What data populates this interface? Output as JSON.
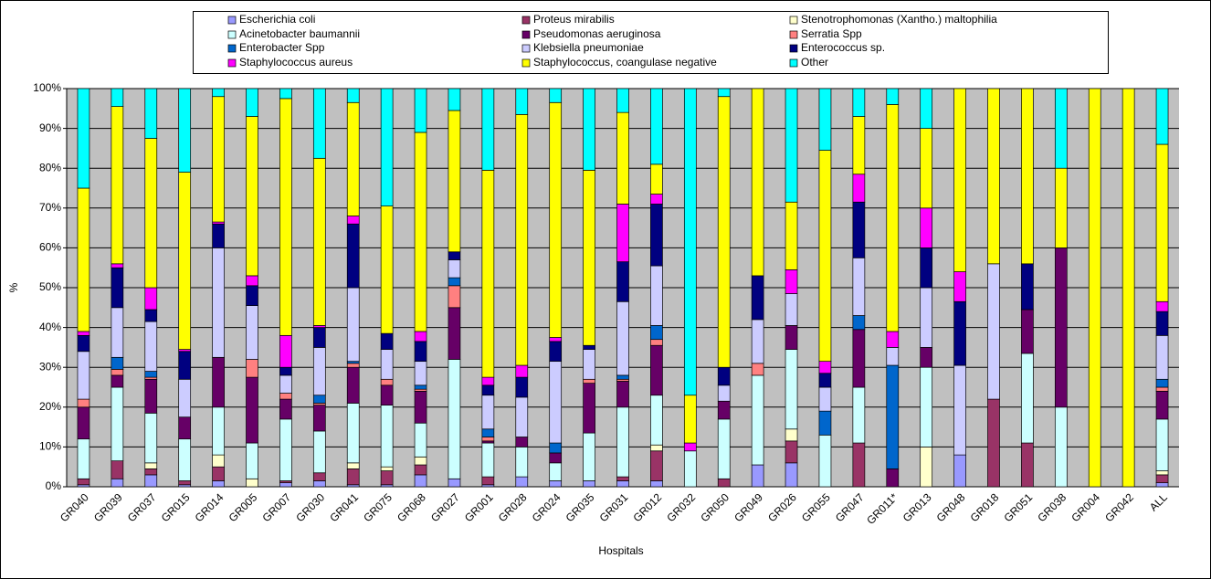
{
  "chart_data": {
    "type": "stacked_bar_100",
    "y_label": "%",
    "x_label": "Hospitals",
    "categories": [
      "GR040",
      "GR039",
      "GR037",
      "GR015",
      "GR014",
      "GR005",
      "GR007",
      "GR030",
      "GR041",
      "GR075",
      "GR068",
      "GR027",
      "GR001",
      "GR028",
      "GR024",
      "GR035",
      "GR031",
      "GR012",
      "GR032",
      "GR050",
      "GR049",
      "GR026",
      "GR055",
      "GR047",
      "GR011*",
      "GR013",
      "GR048",
      "GR018",
      "GR051",
      "GR038",
      "GR004",
      "GR042",
      "ALL"
    ],
    "ylim": [
      0,
      100
    ],
    "yticks": [
      {
        "value": 0,
        "label": "0%"
      },
      {
        "value": 10,
        "label": "10%"
      },
      {
        "value": 20,
        "label": "20%"
      },
      {
        "value": 30,
        "label": "30%"
      },
      {
        "value": 40,
        "label": "40%"
      },
      {
        "value": 50,
        "label": "50%"
      },
      {
        "value": 60,
        "label": "60%"
      },
      {
        "value": 70,
        "label": "70%"
      },
      {
        "value": 80,
        "label": "80%"
      },
      {
        "value": 90,
        "label": "90%"
      },
      {
        "value": 100,
        "label": "100%"
      }
    ],
    "grid": true,
    "legend": "top",
    "series": [
      {
        "name": "Escherichia coli",
        "color": "#9999ff",
        "values": [
          0.5,
          2,
          3,
          0.5,
          1.5,
          0,
          1,
          1.5,
          0.5,
          0.5,
          3,
          2,
          0.5,
          2.5,
          1.5,
          1.5,
          1.5,
          1.5,
          0,
          0,
          5.5,
          6,
          0,
          0,
          0,
          0,
          8,
          0,
          0,
          0,
          0,
          0,
          1
        ]
      },
      {
        "name": "Proteus mirabilis",
        "color": "#993366",
        "values": [
          1.5,
          4.5,
          1.5,
          1,
          3.5,
          0,
          0.5,
          2,
          4,
          3.5,
          2.5,
          0,
          2,
          0,
          0,
          0,
          1,
          7.5,
          0,
          2,
          0,
          5.5,
          0,
          11,
          0,
          0,
          0,
          22,
          11,
          0,
          0,
          0,
          2
        ]
      },
      {
        "name": "Stenotrophomonas (Xantho.) maltophilia",
        "color": "#ffffcc",
        "values": [
          0,
          0,
          1.5,
          0,
          3,
          2,
          0,
          0,
          1.5,
          1,
          2,
          0,
          0,
          0,
          0,
          0,
          0,
          1.5,
          0,
          0,
          0,
          3,
          0,
          0,
          0,
          10,
          0,
          0,
          0,
          0,
          0,
          0,
          1
        ]
      },
      {
        "name": "Acinetobacter baumannii",
        "color": "#ccffff",
        "values": [
          10,
          18.5,
          12.5,
          10.5,
          12,
          9,
          15.5,
          10.5,
          15,
          15.5,
          8.5,
          30,
          8.5,
          7.5,
          4.5,
          12,
          17.5,
          12.5,
          9,
          15,
          22.5,
          20,
          13,
          14,
          0,
          20,
          0,
          0,
          22.5,
          20,
          0,
          0,
          13
        ]
      },
      {
        "name": "Pseudomonas aeruginosa",
        "color": "#660066",
        "values": [
          8,
          3,
          8.5,
          5.5,
          12.5,
          16.5,
          5,
          6.5,
          9,
          5,
          8,
          13,
          0.5,
          2.5,
          2.5,
          12.5,
          6.5,
          12.5,
          0,
          4.5,
          0,
          6,
          0,
          14.5,
          4.5,
          5,
          0,
          0,
          11,
          40,
          0,
          0,
          7
        ]
      },
      {
        "name": "Serratia Spp",
        "color": "#ff8080",
        "values": [
          2,
          1.5,
          0.5,
          0,
          0,
          4.5,
          1.5,
          0.5,
          1,
          1.5,
          0.5,
          5.5,
          1,
          0,
          0,
          1,
          0.5,
          1.5,
          0,
          0,
          3,
          0,
          0,
          0,
          0,
          0,
          0,
          0,
          0,
          0,
          0,
          0,
          1
        ]
      },
      {
        "name": "Enterobacter Spp",
        "color": "#0066cc",
        "values": [
          0,
          3,
          1.5,
          0,
          0,
          0,
          0,
          2,
          0.5,
          0,
          1,
          2,
          2,
          0,
          2.5,
          0,
          1,
          3.5,
          0,
          0,
          0,
          0,
          6,
          3.5,
          26,
          0,
          0,
          0,
          0,
          0,
          0,
          0,
          2
        ]
      },
      {
        "name": "Klebsiella pneumoniae",
        "color": "#ccccff",
        "values": [
          12,
          12.5,
          12.5,
          9.5,
          27.5,
          13.5,
          4.5,
          12,
          18.5,
          7.5,
          6,
          4.5,
          8.5,
          10,
          20.5,
          7.5,
          18.5,
          15,
          0,
          4,
          11,
          8,
          6,
          14.5,
          4.5,
          15,
          22.5,
          34,
          0,
          0,
          0,
          0,
          11
        ]
      },
      {
        "name": "Enterococcus sp.",
        "color": "#000080",
        "values": [
          4,
          10,
          3,
          7,
          6,
          5,
          2,
          5,
          16,
          4,
          5,
          2,
          2.5,
          5,
          5,
          1,
          10,
          15.5,
          0,
          4.5,
          11,
          0,
          3.5,
          14,
          0,
          10,
          16,
          0,
          11.5,
          0,
          0,
          0,
          6
        ]
      },
      {
        "name": "Staphylococcus aureus",
        "color": "#ff00ff",
        "values": [
          1,
          1,
          5.5,
          0.5,
          0.5,
          2.5,
          8,
          0.5,
          2,
          0,
          2.5,
          0,
          2,
          3,
          1,
          0,
          14.5,
          2.5,
          2,
          0,
          0,
          6,
          3,
          7,
          4,
          10,
          7.5,
          0,
          0,
          0,
          0,
          0,
          2.5
        ]
      },
      {
        "name": "Staphylococcus, coangulase negative",
        "color": "#ffff00",
        "values": [
          36,
          39.5,
          37.5,
          44.5,
          31.5,
          40,
          59.5,
          42,
          28.5,
          32,
          50,
          35.5,
          52,
          63,
          59,
          44,
          23,
          7.5,
          12,
          68,
          47,
          17,
          53,
          14.5,
          57,
          20,
          46,
          44,
          44,
          20,
          100,
          100,
          39.5
        ]
      },
      {
        "name": "Other",
        "color": "#00ffff",
        "values": [
          25,
          4.5,
          12.5,
          21,
          2,
          7,
          2.5,
          17.5,
          3.5,
          29.5,
          11,
          5.5,
          20.5,
          6.5,
          3.5,
          20.5,
          6,
          19,
          77,
          2,
          0,
          28.5,
          15.5,
          7,
          4,
          10,
          0,
          0,
          0,
          20,
          0,
          0,
          14
        ]
      }
    ]
  }
}
